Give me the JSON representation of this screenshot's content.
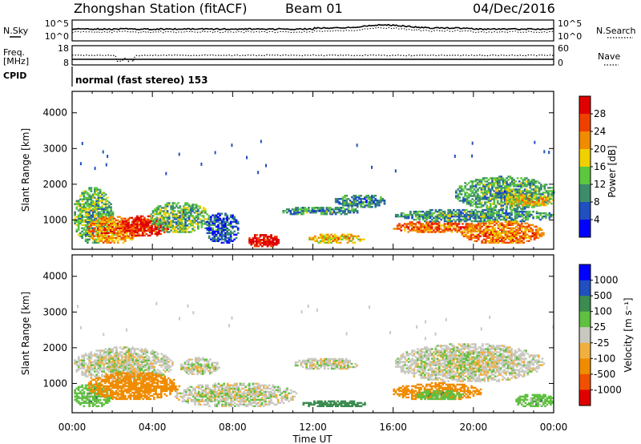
{
  "header": {
    "station": "Zhongshan Station (fitACF)",
    "beam": "Beam 01",
    "date": "04/Dec/2016"
  },
  "side_labels": {
    "nsky": "N.Sky",
    "freq_line1": "Freq.",
    "freq_line2": "[MHz]",
    "cpid": "CPID",
    "nsearch": "N.Search",
    "nave": "Nave"
  },
  "cpid_text": "normal (fast stereo) 153",
  "noise_axis": {
    "left_top": "10^5",
    "left_bottom": "10^0",
    "right_top": "10^5",
    "right_bottom": "10^0"
  },
  "freq_axis": {
    "left_top": "18",
    "left_bottom": "8",
    "right_top": "60",
    "right_bottom": "0"
  },
  "range_axis": {
    "label": "Slant Range [km]",
    "ticks": [
      "1000",
      "2000",
      "3000",
      "4000"
    ]
  },
  "time_axis": {
    "label": "Time UT",
    "ticks": [
      "00:00",
      "04:00",
      "08:00",
      "12:00",
      "16:00",
      "20:00",
      "00:00"
    ]
  },
  "colors": {
    "power": [
      "#0000ff",
      "#2050c0",
      "#3c8c6c",
      "#5cc840",
      "#f0d000",
      "#f08c00",
      "#f04000",
      "#e00000"
    ],
    "velocity": [
      "#e00000",
      "#f05000",
      "#f08c00",
      "#f0b040",
      "#c8c8c0",
      "#60c040",
      "#3c8c50",
      "#2050c0",
      "#0000ff"
    ]
  },
  "chart_data": [
    {
      "type": "heatmap",
      "name": "power",
      "xlabel": "Time UT",
      "ylabel": "Slant Range [km]",
      "xlim": [
        0,
        24
      ],
      "ylim": [
        180,
        4600
      ],
      "colorbar_label": "Power [dB]",
      "colorbar_ticks": [
        "4",
        "8",
        "12",
        "16",
        "20",
        "24",
        "28"
      ],
      "colorbar_range": [
        0,
        30
      ],
      "patches": [
        {
          "t": [
            0.0,
            2.0
          ],
          "r": [
            300,
            1900
          ],
          "v": 12
        },
        {
          "t": [
            0.7,
            3.3
          ],
          "r": [
            300,
            1100
          ],
          "v": 21
        },
        {
          "t": [
            2.3,
            4.8
          ],
          "r": [
            500,
            1100
          ],
          "v": 27
        },
        {
          "t": [
            3.8,
            6.8
          ],
          "r": [
            600,
            1500
          ],
          "v": 12
        },
        {
          "t": [
            6.6,
            8.3
          ],
          "r": [
            300,
            1200
          ],
          "v": 6
        },
        {
          "t": [
            8.7,
            10.3
          ],
          "r": [
            200,
            600
          ],
          "v": 29
        },
        {
          "t": [
            10.3,
            14.3
          ],
          "r": [
            1100,
            1350
          ],
          "v": 10
        },
        {
          "t": [
            11.7,
            14.5
          ],
          "r": [
            300,
            600
          ],
          "v": 18
        },
        {
          "t": [
            13.0,
            15.6
          ],
          "r": [
            1300,
            1700
          ],
          "v": 9
        },
        {
          "t": [
            15.9,
            20.3
          ],
          "r": [
            600,
            950
          ],
          "v": 23
        },
        {
          "t": [
            16.0,
            24.0
          ],
          "r": [
            900,
            1300
          ],
          "v": 10
        },
        {
          "t": [
            19.3,
            23.5
          ],
          "r": [
            300,
            950
          ],
          "v": 22
        },
        {
          "t": [
            19.0,
            24.0
          ],
          "r": [
            1250,
            2200
          ],
          "v": 11
        },
        {
          "t": [
            21.5,
            24.0
          ],
          "r": [
            1350,
            1700
          ],
          "v": 17
        }
      ]
    },
    {
      "type": "heatmap",
      "name": "velocity",
      "xlabel": "Time UT",
      "ylabel": "Slant Range [km]",
      "xlim": [
        0,
        24
      ],
      "ylim": [
        180,
        4600
      ],
      "colorbar_label": "Velocity [m s⁻¹]",
      "colorbar_ticks": [
        "1000",
        "500",
        "100",
        "25",
        "-25",
        "-100",
        "-500",
        "-1000"
      ],
      "patches": [
        {
          "t": [
            0.0,
            5.0
          ],
          "r": [
            1000,
            2000
          ],
          "v": 0
        },
        {
          "t": [
            0.0,
            2.0
          ],
          "r": [
            300,
            1000
          ],
          "v": 60
        },
        {
          "t": [
            0.7,
            5.3
          ],
          "r": [
            500,
            1300
          ],
          "v": -300
        },
        {
          "t": [
            5.3,
            7.3
          ],
          "r": [
            1200,
            1700
          ],
          "v": 0
        },
        {
          "t": [
            5.0,
            11.2
          ],
          "r": [
            300,
            1000
          ],
          "v": 0
        },
        {
          "t": [
            11.0,
            14.3
          ],
          "r": [
            1350,
            1700
          ],
          "v": 0
        },
        {
          "t": [
            11.3,
            14.7
          ],
          "r": [
            300,
            500
          ],
          "v": 200
        },
        {
          "t": [
            15.9,
            20.4
          ],
          "r": [
            500,
            1000
          ],
          "v": -200
        },
        {
          "t": [
            16.0,
            23.5
          ],
          "r": [
            1000,
            2100
          ],
          "v": 0
        },
        {
          "t": [
            17.0,
            19.5
          ],
          "r": [
            500,
            800
          ],
          "v": 60
        },
        {
          "t": [
            22.0,
            24.0
          ],
          "r": [
            300,
            700
          ],
          "v": 60
        }
      ]
    }
  ]
}
